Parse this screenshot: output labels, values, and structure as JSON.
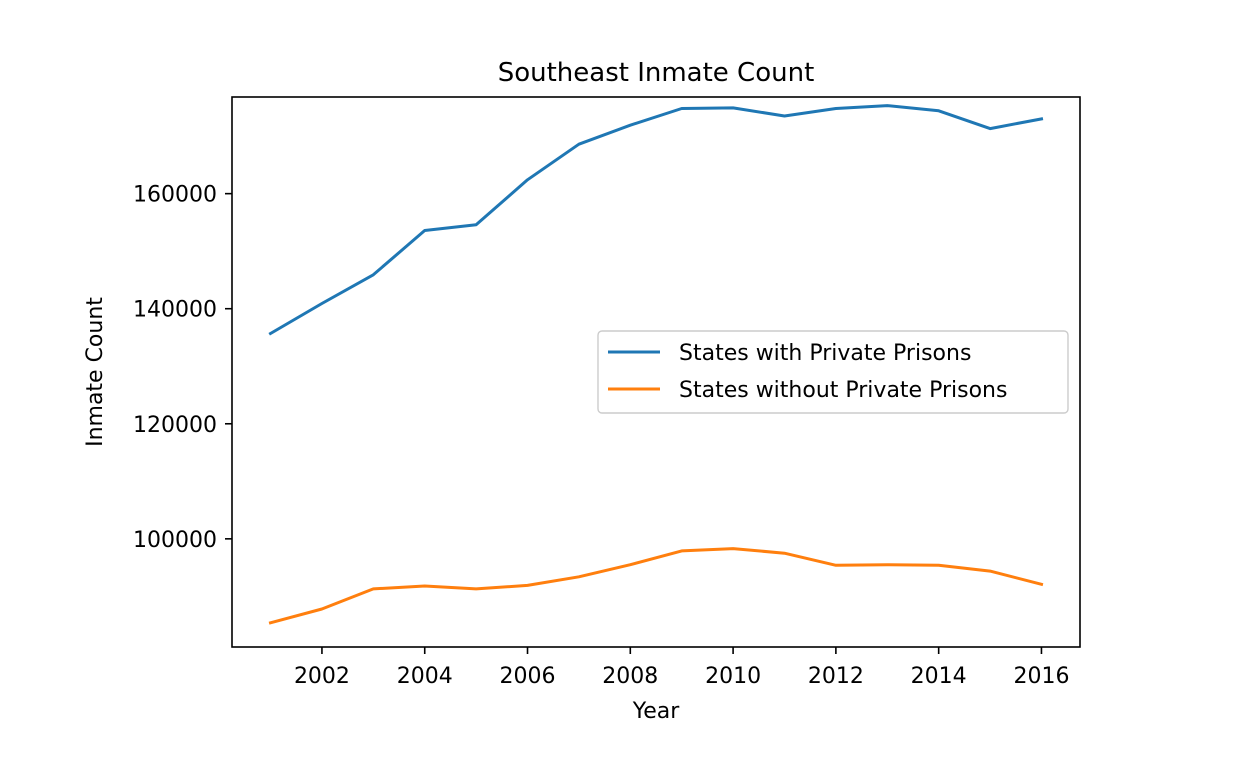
{
  "chart_data": {
    "type": "line",
    "title": "Southeast Inmate Count",
    "xlabel": "Year",
    "ylabel": "Inmate Count",
    "xlim": [
      2000.25,
      2016.75
    ],
    "ylim": [
      81200,
      176800
    ],
    "x_ticks": [
      2002,
      2004,
      2006,
      2008,
      2010,
      2012,
      2014,
      2016
    ],
    "y_ticks": [
      100000,
      120000,
      140000,
      160000
    ],
    "grid": false,
    "legend_position": "center-right",
    "x": [
      2001,
      2002,
      2003,
      2004,
      2005,
      2006,
      2007,
      2008,
      2009,
      2010,
      2011,
      2012,
      2013,
      2014,
      2015,
      2016
    ],
    "series": [
      {
        "name": "States with Private Prisons",
        "color": "#1f77b4",
        "values": [
          135700,
          140900,
          145900,
          153600,
          154600,
          162400,
          168600,
          171900,
          174800,
          174900,
          173500,
          174800,
          175300,
          174400,
          171300,
          173000
        ]
      },
      {
        "name": "States without Private Prisons",
        "color": "#ff7f0e",
        "values": [
          85400,
          87800,
          91300,
          91800,
          91300,
          91900,
          93400,
          95500,
          97900,
          98300,
          97500,
          95400,
          95500,
          95400,
          94400,
          92100
        ]
      }
    ]
  }
}
